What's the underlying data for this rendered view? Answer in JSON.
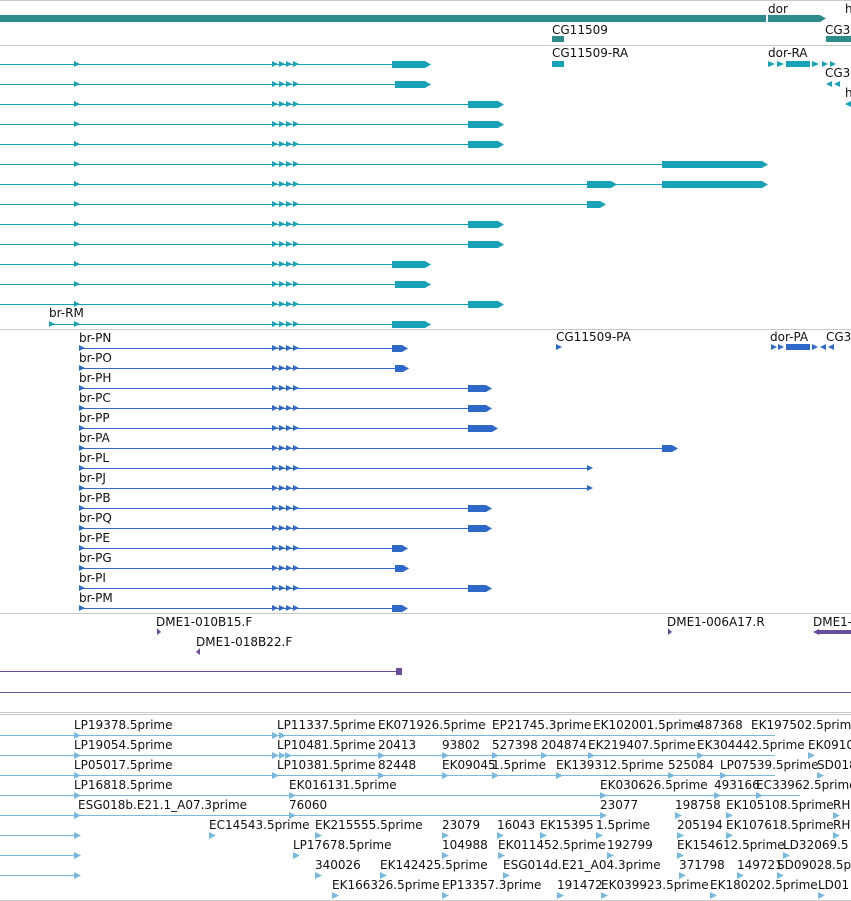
{
  "colors": {
    "gene": "#2e8b8b",
    "transcript_teal": "#17a2b8",
    "transcript_blue": "#2e68c9",
    "clone_purple": "#6a4c9c",
    "est_light": "#78b9de",
    "track_divider": "#c8c8c8"
  },
  "track_genes": {
    "labels": [
      "dor",
      "CG11509",
      "CG3",
      "h",
      "CG11509-RA",
      "dor-RA",
      "CG3",
      "h"
    ]
  },
  "track_transcripts_blue": {
    "br_labels": [
      "br-PN",
      "br-PO",
      "br-PH",
      "br-PC",
      "br-PP",
      "br-PA",
      "br-PL",
      "br-PJ",
      "br-PB",
      "br-PQ",
      "br-PE",
      "br-PG",
      "br-PI",
      "br-PM"
    ],
    "other_labels": [
      "CG11509-PA",
      "dor-PA",
      "CG3"
    ]
  },
  "track_teal_last": {
    "label": "br-RM"
  },
  "track_clones": {
    "labels": [
      "DME1-010B15.F",
      "DME1-018B22.F",
      "DME1-006A17.R",
      "DME1-"
    ]
  },
  "track_est": {
    "rows": [
      [
        "LP19378.5prime",
        "LP11337.5prime",
        "EK071926.5prime",
        "EP21745.3prime",
        "EK102001.5prime",
        "487368",
        "EK197502.5prime"
      ],
      [
        "LP19054.5prime",
        "LP10481.5prime",
        "20413",
        "93802",
        "527398",
        "204874",
        "EK219407.5prime",
        "EK304442.5prime",
        "EK0910"
      ],
      [
        "LP05017.5prime",
        "LP10381.5prime",
        "82448",
        "EK09045",
        "1.5prime",
        "EK139312.5prime",
        "525084",
        "LP07539.5prime",
        "SD018"
      ],
      [
        "LP16818.5prime",
        "EK016131.5prime",
        "EK030626.5prime",
        "493166",
        "EC33962.5prime"
      ],
      [
        "ESG018b.E21.1_A07.3prime",
        "76060",
        "23077",
        "198758",
        "EK105108.5prime",
        "RH"
      ],
      [
        "EC14543.5prime",
        "EK215555.5prime",
        "23079",
        "16043",
        "EK15395",
        "1.5prime",
        "205194",
        "EK107618.5prime",
        "RH"
      ],
      [
        "LP17678.5prime",
        "104988",
        "EK011452.5prime",
        "192799",
        "EK154612.5prime",
        "LD32069.5"
      ],
      [
        "340026",
        "EK142425.5prime",
        "ESG014d.E21_A04.3prime",
        "371798",
        "149721",
        "SD09028.5p"
      ],
      [
        "EK166326.5prime",
        "EP13357.3prime",
        "191472",
        "EK039923.5prime",
        "EK180202.5prime",
        "LD01"
      ]
    ]
  }
}
